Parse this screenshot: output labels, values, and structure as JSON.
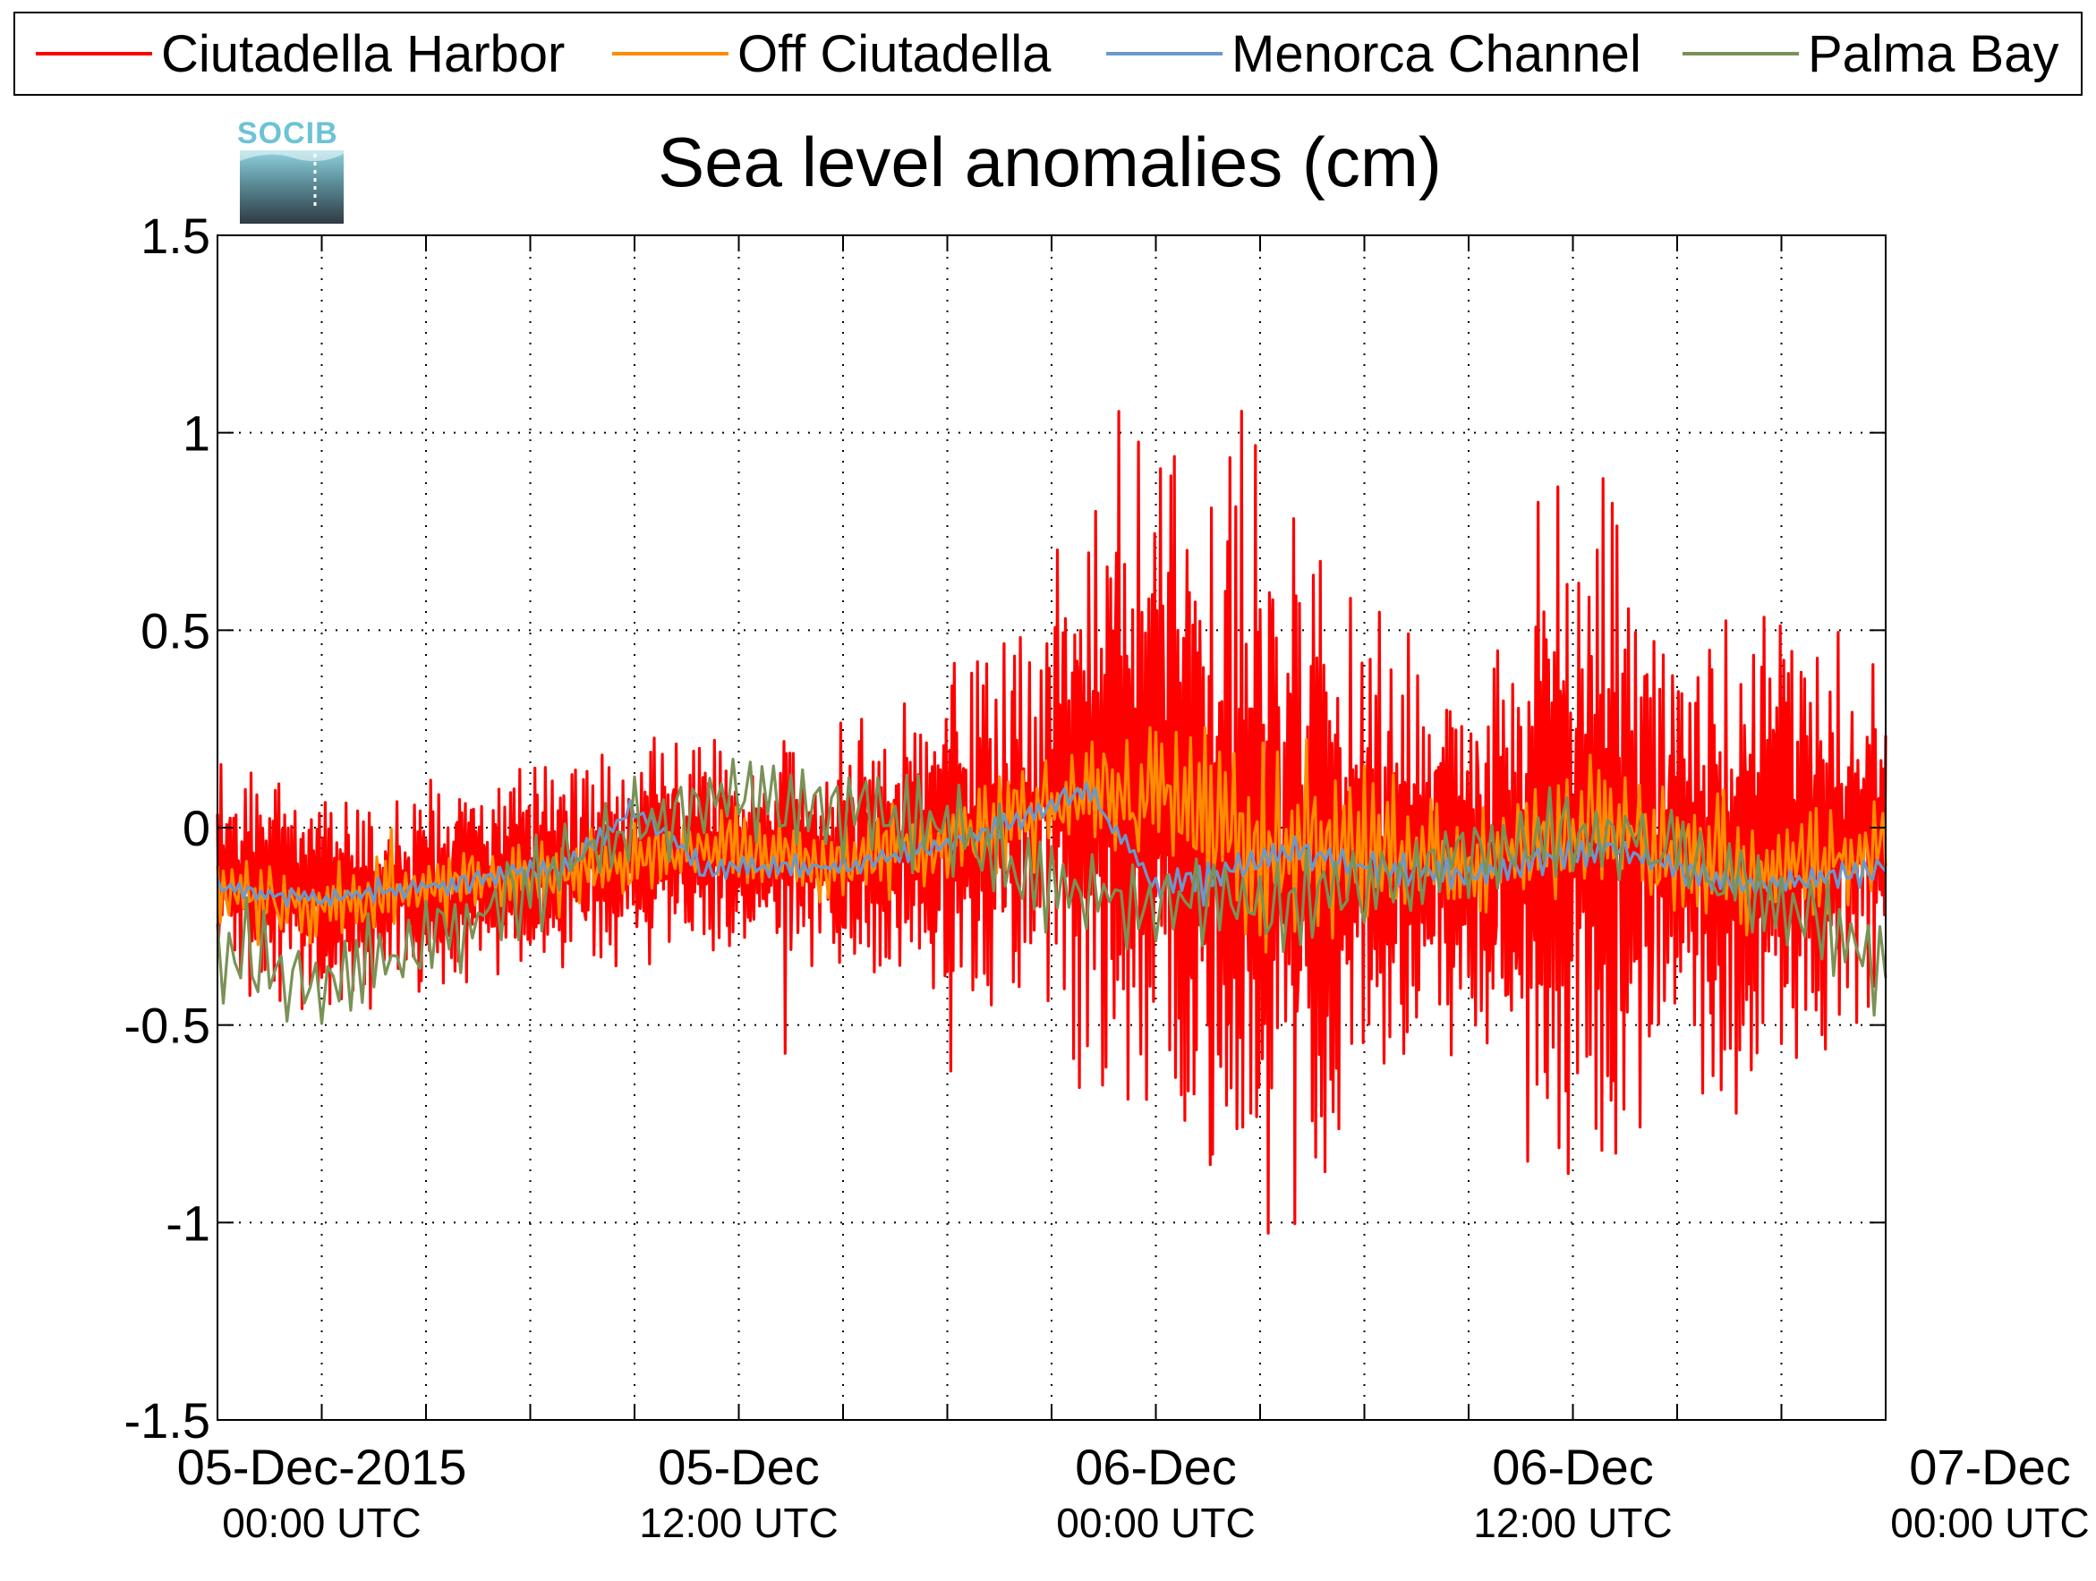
{
  "chart_data": {
    "type": "line",
    "title": "Sea level anomalies (cm)",
    "logo": "SOCIB",
    "xlabel": "",
    "ylabel": "",
    "ylim": [
      -1.5,
      1.5
    ],
    "xlim_hours": [
      0,
      48
    ],
    "y_ticks": [
      "1.5",
      "1",
      "0.5",
      "0",
      "-0.5",
      "-1",
      "-1.5"
    ],
    "y_tick_values": [
      1.5,
      1,
      0.5,
      0,
      -0.5,
      -1,
      -1.5
    ],
    "x_tick_labels": [
      {
        "date": "05-Dec-2015",
        "time": "00:00 UTC",
        "hour": 3
      },
      {
        "date": "05-Dec",
        "time": "12:00 UTC",
        "hour": 15
      },
      {
        "date": "06-Dec",
        "time": "00:00 UTC",
        "hour": 27
      },
      {
        "date": "06-Dec",
        "time": "12:00 UTC",
        "hour": 39
      },
      {
        "date": "07-Dec",
        "time": "00:00 UTC",
        "hour": 51
      }
    ],
    "x_grid_hours": [
      3,
      6,
      9,
      12,
      15,
      18,
      21,
      24,
      27,
      30,
      33,
      36,
      39,
      42,
      45
    ],
    "grid": true,
    "legend_position": "top",
    "series": [
      {
        "name": "Ciutadella Harbor",
        "color": "#ff0000",
        "samples_per_hour": 30,
        "envelope_hours": [
          0,
          6,
          12,
          15,
          18,
          22,
          24,
          26,
          28,
          30,
          33,
          36,
          38,
          40,
          42,
          44,
          46,
          48
        ],
        "envelope_amp": [
          0.28,
          0.26,
          0.28,
          0.25,
          0.32,
          0.42,
          0.58,
          0.85,
          0.85,
          1.0,
          0.62,
          0.42,
          0.85,
          0.8,
          0.58,
          0.62,
          0.52,
          0.45
        ],
        "trend_hours": [
          0,
          3,
          6,
          10,
          14,
          18,
          22,
          25,
          27,
          30,
          33,
          36,
          40,
          44,
          48
        ],
        "trend": [
          -0.1,
          -0.2,
          -0.15,
          -0.1,
          -0.05,
          -0.08,
          0.0,
          0.1,
          0.12,
          -0.1,
          -0.05,
          -0.1,
          0.0,
          -0.1,
          0.0
        ],
        "seed": 11
      },
      {
        "name": "Off Ciutadella",
        "color": "#ff8c00",
        "samples_per_hour": 12,
        "envelope_hours": [
          0,
          12,
          22,
          26,
          30,
          33,
          36,
          40,
          44,
          48
        ],
        "envelope_amp": [
          0.1,
          0.1,
          0.12,
          0.18,
          0.3,
          0.22,
          0.14,
          0.18,
          0.14,
          0.12
        ],
        "trend_hours": [
          0,
          3,
          6,
          10,
          14,
          18,
          22,
          25,
          27,
          30,
          33,
          36,
          40,
          44,
          48
        ],
        "trend": [
          -0.15,
          -0.2,
          -0.15,
          -0.12,
          -0.05,
          -0.1,
          0.0,
          0.08,
          0.1,
          -0.05,
          -0.05,
          -0.1,
          0.0,
          -0.12,
          -0.05
        ],
        "seed": 23
      },
      {
        "name": "Menorca Channel",
        "color": "#6a99cb",
        "samples_per_hour": 8,
        "envelope_hours": [
          0,
          12,
          24,
          30,
          36,
          40,
          48
        ],
        "envelope_amp": [
          0.03,
          0.03,
          0.03,
          0.05,
          0.04,
          0.04,
          0.04
        ],
        "trend_hours": [
          0,
          3,
          6,
          10,
          12,
          14,
          18,
          22,
          25,
          27,
          29,
          31,
          33,
          36,
          40,
          44,
          48
        ],
        "trend": [
          -0.15,
          -0.18,
          -0.15,
          -0.1,
          0.05,
          -0.1,
          -0.1,
          -0.02,
          0.1,
          -0.15,
          -0.12,
          -0.05,
          -0.1,
          -0.12,
          -0.05,
          -0.15,
          -0.1
        ],
        "seed": 37
      },
      {
        "name": "Palma Bay",
        "color": "#7a9256",
        "samples_per_hour": 6,
        "envelope_hours": [
          0,
          6,
          12,
          20,
          26,
          30,
          36,
          42,
          48
        ],
        "envelope_amp": [
          0.16,
          0.14,
          0.12,
          0.14,
          0.12,
          0.14,
          0.12,
          0.12,
          0.14
        ],
        "trend_hours": [
          0,
          3,
          6,
          9,
          12,
          15,
          18,
          21,
          24,
          27,
          30,
          33,
          36,
          39,
          42,
          45,
          48
        ],
        "trend": [
          -0.3,
          -0.4,
          -0.3,
          -0.15,
          0.0,
          0.1,
          0.05,
          0.0,
          -0.15,
          -0.2,
          -0.2,
          -0.15,
          -0.05,
          0.0,
          -0.05,
          -0.2,
          -0.35
        ],
        "seed": 53
      }
    ]
  }
}
